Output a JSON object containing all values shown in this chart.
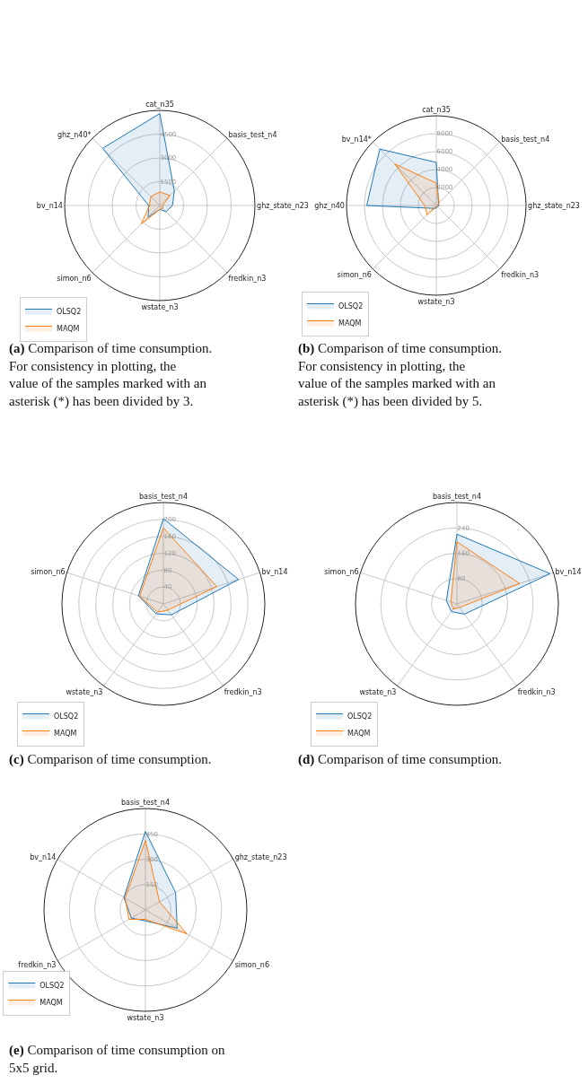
{
  "chart_data": [
    {
      "type": "radar",
      "categories": [
        "cat_n35",
        "basis_test_n4",
        "ghz_state_n23",
        "fredkin_n3",
        "wstate_n3",
        "simon_n6",
        "bv_n14",
        "ghz_n40*"
      ],
      "ylim": [
        0,
        6000
      ],
      "yticks": [
        1500,
        3000,
        4500
      ],
      "grid": true,
      "legend": "bottom left",
      "series": [
        {
          "name": "OLSQ2",
          "color": "#1f77b4",
          "values": [
            5800,
            1300,
            800,
            550,
            250,
            1050,
            700,
            5100
          ]
        },
        {
          "name": "MAQM",
          "color": "#ff7f0e",
          "values": [
            850,
            900,
            200,
            250,
            250,
            1650,
            650,
            800
          ]
        }
      ],
      "annotations": [
        "(a) Comparison of time consumption. For consistency in plotting, the value of the samples marked with an asterisk (*) has been divided by 3."
      ]
    },
    {
      "type": "radar",
      "categories": [
        "cat_n35",
        "basis_test_n4",
        "ghz_state_n23",
        "fredkin_n3",
        "wstate_n3",
        "simon_n6",
        "ghz_n40",
        "bv_n14*"
      ],
      "ylim": [
        0,
        10000
      ],
      "yticks": [
        2000,
        4000,
        6000,
        8000
      ],
      "grid": true,
      "legend": "bottom left",
      "series": [
        {
          "name": "OLSQ2",
          "color": "#1f77b4",
          "values": [
            4800,
            350,
            300,
            200,
            300,
            450,
            7750,
            8900
          ]
        },
        {
          "name": "MAQM",
          "color": "#ff7f0e",
          "values": [
            2500,
            450,
            150,
            100,
            150,
            1450,
            1300,
            6550
          ]
        }
      ],
      "annotations": [
        "(b) Comparison of time consumption. For consistency in plotting, the value of the samples marked with an asterisk (*) has been divided by 5."
      ]
    },
    {
      "type": "radar",
      "categories": [
        "basis_test_n4",
        "bv_n14",
        "fredkin_n3",
        "wstate_n3",
        "simon_n6"
      ],
      "ylim": [
        0,
        240
      ],
      "yticks": [
        40,
        80,
        120,
        160,
        200
      ],
      "grid": true,
      "legend": "bottom left",
      "series": [
        {
          "name": "OLSQ2",
          "color": "#1f77b4",
          "values": [
            202,
            187,
            32,
            29,
            62
          ]
        },
        {
          "name": "MAQM",
          "color": "#ff7f0e",
          "values": [
            180,
            133,
            18,
            24,
            59
          ]
        }
      ],
      "annotations": [
        "(c) Comparison of time consumption."
      ]
    },
    {
      "type": "radar",
      "categories": [
        "basis_test_n4",
        "bv_n14",
        "fredkin_n3",
        "wstate_n3",
        "simon_n6"
      ],
      "ylim": [
        0,
        320
      ],
      "yticks": [
        80,
        160,
        240
      ],
      "grid": true,
      "legend": "bottom left",
      "series": [
        {
          "name": "OLSQ2",
          "color": "#1f77b4",
          "values": [
            220,
            309,
            40,
            30,
            35
          ]
        },
        {
          "name": "MAQM",
          "color": "#ff7f0e",
          "values": [
            196,
            208,
            14,
            20,
            20
          ]
        }
      ],
      "annotations": [
        "(d) Comparison of time consumption."
      ]
    },
    {
      "type": "radar",
      "categories": [
        "basis_test_n4",
        "ghz_state_n23",
        "simon_n6",
        "wstate_n3",
        "fredkin_n3",
        "bv_n14"
      ],
      "ylim": [
        0,
        600
      ],
      "yticks": [
        150,
        300,
        450
      ],
      "grid": true,
      "legend": "bottom left",
      "series": [
        {
          "name": "OLSQ2",
          "color": "#1f77b4",
          "values": [
            464,
            206,
            217,
            65,
            96,
            147
          ]
        },
        {
          "name": "MAQM",
          "color": "#ff7f0e",
          "values": [
            411,
            96,
            284,
            56,
            112,
            139
          ]
        }
      ],
      "annotations": [
        "(e) Comparison of time consumption on 5x5 grid."
      ]
    }
  ]
}
